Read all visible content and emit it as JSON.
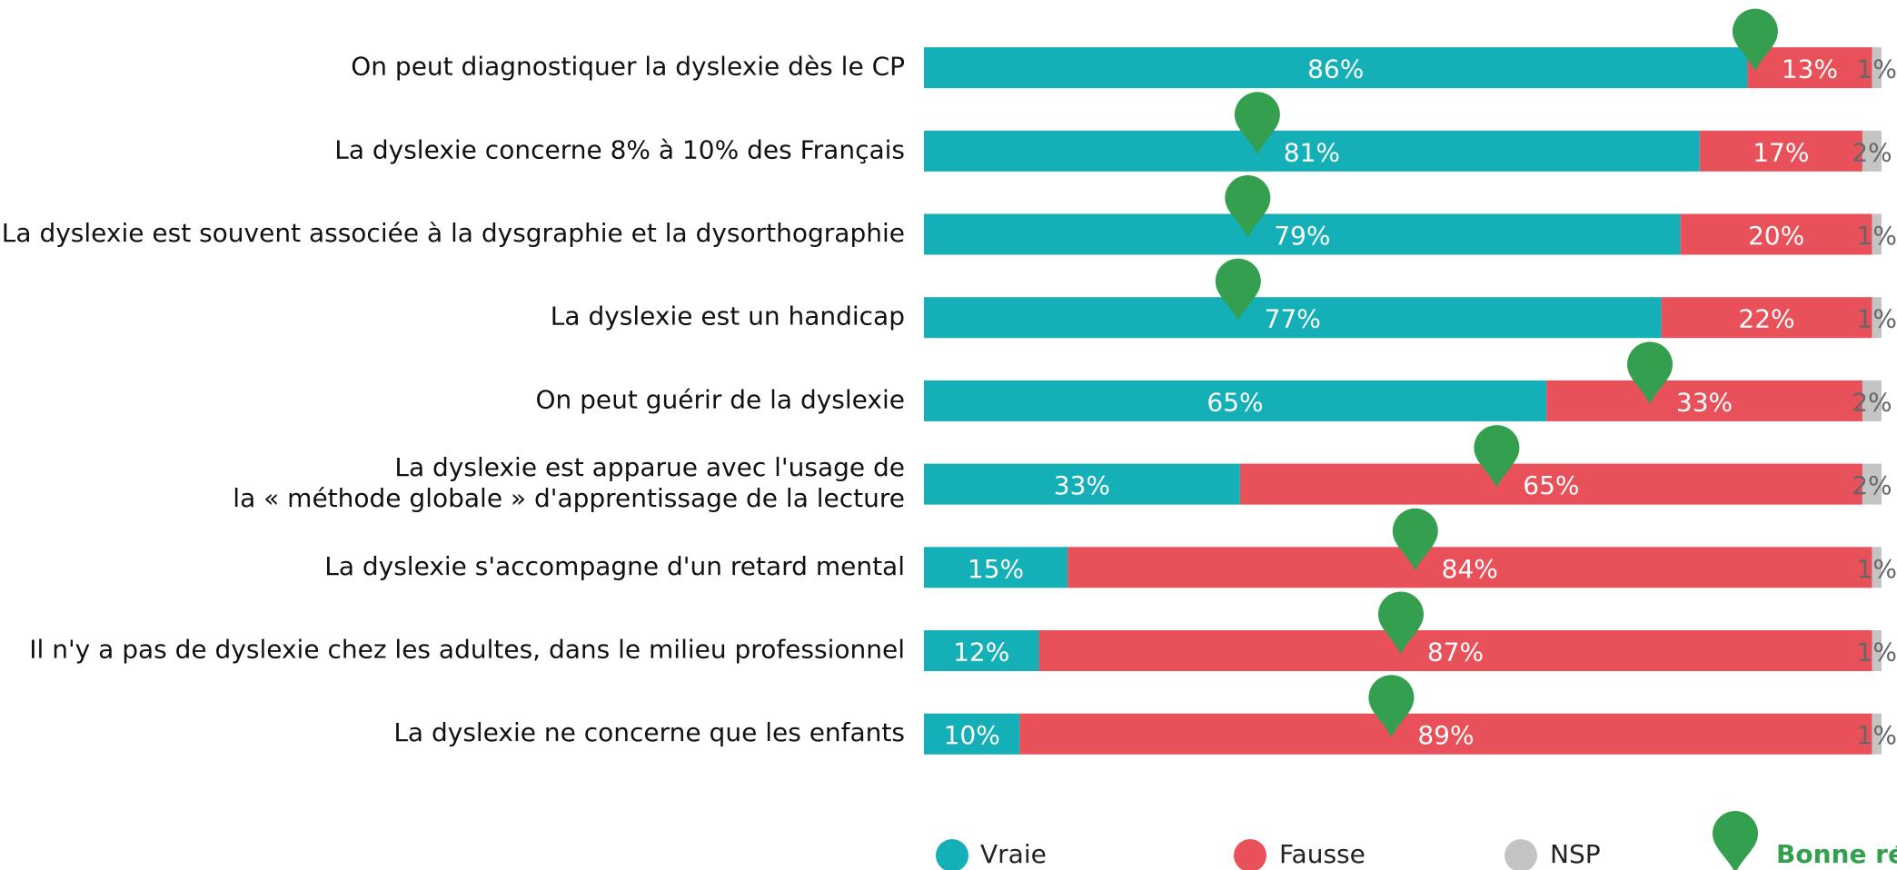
{
  "chart_data": {
    "type": "stacked_bar_horizontal",
    "categories": [
      "On peut diagnostiquer la dyslexie dès le CP",
      "La dyslexie concerne 8% à 10% des Français",
      "La dyslexie est souvent associée à la dysgraphie et la dysorthographie",
      "La dyslexie est un handicap",
      "On peut guérir de la dyslexie",
      "La dyslexie est apparue avec l'usage de\nla « méthode globale » d'apprentissage de la lecture",
      "La dyslexie s'accompagne d'un retard mental",
      "Il n'y a pas de dyslexie chez les adultes, dans le milieu professionnel",
      "La dyslexie ne concerne que les enfants"
    ],
    "series": [
      {
        "name": "Vraie",
        "color": "#14afb7",
        "values": [
          86,
          81,
          79,
          77,
          65,
          33,
          15,
          12,
          10
        ],
        "value_labels": [
          "86%",
          "81%",
          "79%",
          "77%",
          "65%",
          "33%",
          "15%",
          "12%",
          "10%"
        ]
      },
      {
        "name": "Fausse",
        "color": "#e8505a",
        "values": [
          13,
          17,
          20,
          22,
          33,
          65,
          84,
          87,
          89
        ],
        "value_labels": [
          "13%",
          "17%",
          "20%",
          "22%",
          "33%",
          "65%",
          "84%",
          "87%",
          "89%"
        ]
      },
      {
        "name": "NSP",
        "color": "#c4c4c4",
        "values": [
          1,
          2,
          1,
          1,
          2,
          2,
          1,
          1,
          1
        ],
        "value_labels": [
          "1%",
          "2%",
          "1%",
          "1%",
          "2%",
          "2%",
          "1%",
          "1%",
          "1%"
        ]
      }
    ],
    "correct": [
      "Fausse",
      "Vraie",
      "Vraie",
      "Vraie",
      "Fausse",
      "Fausse",
      "Fausse",
      "Fausse",
      "Fausse"
    ],
    "correct_legend": {
      "name": "Bonne réponse",
      "color": "#34a04f"
    },
    "xlim": [
      0,
      100
    ]
  }
}
